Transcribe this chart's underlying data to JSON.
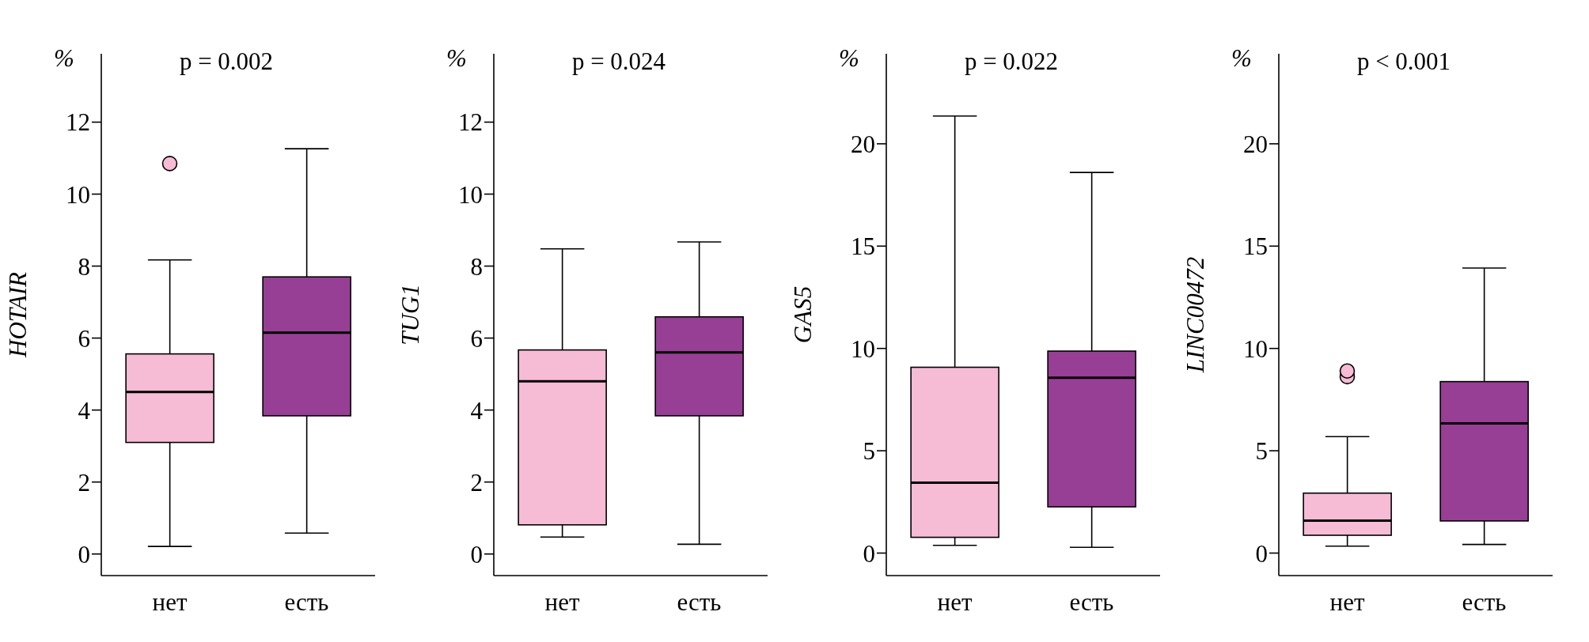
{
  "chart_data": [
    {
      "type": "box",
      "title": "p = 0.002",
      "ylabel": "HOTAIR",
      "annotations": [
        "%"
      ],
      "categories": [
        "нет",
        "есть"
      ],
      "colors": [
        "#f6bbd5",
        "#973f94"
      ],
      "ylim": [
        -0.6,
        13.9
      ],
      "yticks": [
        0,
        2,
        4,
        6,
        8,
        10,
        12
      ],
      "grid": false,
      "legend": false,
      "boxes": [
        {
          "low": 0.21,
          "q1": 3.1,
          "median": 4.5,
          "q3": 5.56,
          "high": 8.17,
          "outliers": [
            10.85
          ]
        },
        {
          "low": 0.58,
          "q1": 3.84,
          "median": 6.15,
          "q3": 7.7,
          "high": 11.26
        }
      ]
    },
    {
      "type": "box",
      "title": "p = 0.024",
      "ylabel": "TUG1",
      "annotations": [
        "%"
      ],
      "categories": [
        "нет",
        "есть"
      ],
      "colors": [
        "#f6bbd5",
        "#973f94"
      ],
      "ylim": [
        -0.6,
        13.9
      ],
      "yticks": [
        0,
        2,
        4,
        6,
        8,
        10,
        12
      ],
      "grid": false,
      "legend": false,
      "boxes": [
        {
          "low": 0.47,
          "q1": 0.81,
          "median": 4.8,
          "q3": 5.67,
          "high": 8.48
        },
        {
          "low": 0.27,
          "q1": 3.84,
          "median": 5.6,
          "q3": 6.59,
          "high": 8.67
        }
      ]
    },
    {
      "type": "box",
      "title": "p = 0.022",
      "ylabel": "GAS5",
      "annotations": [
        "%"
      ],
      "categories": [
        "нет",
        "есть"
      ],
      "colors": [
        "#f6bbd5",
        "#973f94"
      ],
      "ylim": [
        -1.1,
        24.4
      ],
      "yticks": [
        0,
        5,
        10,
        15,
        20
      ],
      "grid": false,
      "legend": false,
      "boxes": [
        {
          "low": 0.38,
          "q1": 0.77,
          "median": 3.44,
          "q3": 9.08,
          "high": 21.36
        },
        {
          "low": 0.28,
          "q1": 2.26,
          "median": 8.57,
          "q3": 9.87,
          "high": 18.6
        }
      ]
    },
    {
      "type": "box",
      "title": "p < 0.001",
      "ylabel": "LINC00472",
      "annotations": [
        "%"
      ],
      "categories": [
        "нет",
        "есть"
      ],
      "colors": [
        "#f6bbd5",
        "#973f94"
      ],
      "ylim": [
        -1.1,
        24.4
      ],
      "yticks": [
        0,
        5,
        10,
        15,
        20
      ],
      "grid": false,
      "legend": false,
      "boxes": [
        {
          "low": 0.34,
          "q1": 0.87,
          "median": 1.59,
          "q3": 2.93,
          "high": 5.69,
          "outliers": [
            8.62,
            8.9
          ]
        },
        {
          "low": 0.42,
          "q1": 1.57,
          "median": 6.34,
          "q3": 8.38,
          "high": 13.93
        }
      ]
    }
  ]
}
